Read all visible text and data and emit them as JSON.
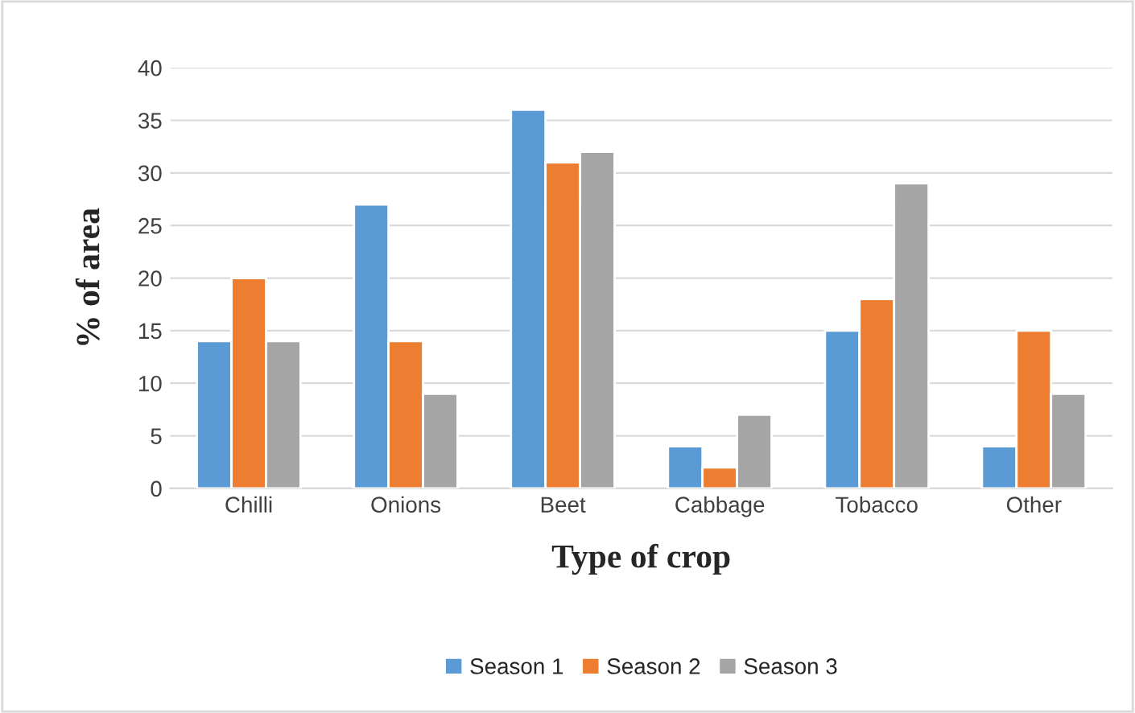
{
  "chart_data": {
    "type": "bar",
    "xlabel": "Type of crop",
    "ylabel": "% of area",
    "categories": [
      "Chilli",
      "Onions",
      "Beet",
      "Cabbage",
      "Tobacco",
      "Other"
    ],
    "series": [
      {
        "name": "Season 1",
        "color": "#5b9bd5",
        "values": [
          14,
          27,
          36,
          4,
          15,
          4
        ]
      },
      {
        "name": "Season 2",
        "color": "#ed7d31",
        "values": [
          20,
          14,
          31,
          2,
          18,
          15
        ]
      },
      {
        "name": "Season 3",
        "color": "#a5a5a5",
        "values": [
          14,
          9,
          32,
          7,
          29,
          9
        ]
      }
    ],
    "ylim": [
      0,
      40
    ],
    "yticks": [
      0,
      5,
      10,
      15,
      20,
      25,
      30,
      35,
      40
    ],
    "grid": "y",
    "legend": "bottom"
  }
}
